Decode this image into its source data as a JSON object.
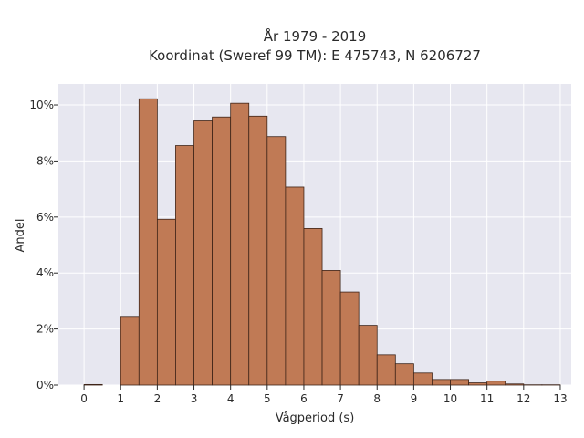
{
  "chart_data": {
    "type": "bar",
    "title_lines": [
      "År 1979 - 2019",
      "Koordinat (Sweref 99 TM): E 475743, N 6206727"
    ],
    "xlabel": "Vågperiod (s)",
    "ylabel": "Andel",
    "bin_width": 0.5,
    "bin_starts": [
      0,
      0.5,
      1,
      1.5,
      2,
      2.5,
      3,
      3.5,
      4,
      4.5,
      5,
      5.5,
      6,
      6.5,
      7,
      7.5,
      8,
      8.5,
      9,
      9.5,
      10,
      10.5,
      11,
      11.5,
      12,
      12.5
    ],
    "values": [
      0.02,
      0,
      2.45,
      10.22,
      5.92,
      8.55,
      9.43,
      9.57,
      10.06,
      9.6,
      8.87,
      7.07,
      5.59,
      4.09,
      3.32,
      2.13,
      1.08,
      0.76,
      0.43,
      0.2,
      0.2,
      0.08,
      0.14,
      0.04,
      0.01,
      0.01
    ],
    "xlim": [
      -0.7,
      13.3
    ],
    "ylim": [
      0,
      10.75
    ],
    "xticks": [
      0,
      1,
      2,
      3,
      4,
      5,
      6,
      7,
      8,
      9,
      10,
      11,
      12,
      13
    ],
    "xtick_labels": [
      "0",
      "1",
      "2",
      "3",
      "4",
      "5",
      "6",
      "7",
      "8",
      "9",
      "10",
      "11",
      "12",
      "13"
    ],
    "yticks": [
      0,
      2,
      4,
      6,
      8,
      10
    ],
    "ytick_labels": [
      "0%",
      "2%",
      "4%",
      "6%",
      "8%",
      "10%"
    ],
    "grid": true,
    "colors": {
      "bar_fill": "#c07a55",
      "bar_edge": "#3e2418",
      "plot_background": "#e7e7f0",
      "grid": "#ffffff"
    }
  }
}
